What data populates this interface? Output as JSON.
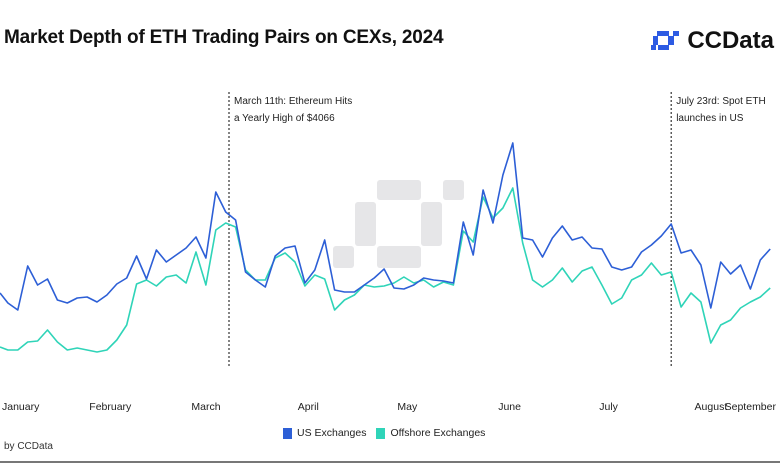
{
  "title": "Market Depth of ETH Trading Pairs on CEXs, 2024",
  "logo": {
    "text": "CCData",
    "color": "#2d5be3"
  },
  "source": "by CCData",
  "annotations": [
    {
      "lines": [
        "March 11th: Ethereum Hits",
        "a Yearly High of $4066"
      ],
      "date": "2024-03-11"
    },
    {
      "lines": [
        "July 23rd: Spot ETH",
        "launches in US"
      ],
      "date": "2024-07-23"
    }
  ],
  "legend": [
    {
      "label": "US Exchanges",
      "color": "#2d5fd6"
    },
    {
      "label": "Offshore Exchanges",
      "color": "#2fd4b8"
    }
  ],
  "chart_data": {
    "type": "line",
    "title": "Market Depth of ETH Trading Pairs on CEXs, 2024",
    "xlabel": "",
    "ylabel": "",
    "y_axis_shown": false,
    "grid": false,
    "legend_position": "bottom",
    "ylim": [
      0,
      240
    ],
    "x_tick_labels": [
      "January",
      "February",
      "March",
      "April",
      "May",
      "June",
      "July",
      "August",
      "September"
    ],
    "x": [
      "2024-01-01",
      "2024-01-04",
      "2024-01-07",
      "2024-01-10",
      "2024-01-13",
      "2024-01-16",
      "2024-01-19",
      "2024-01-22",
      "2024-01-25",
      "2024-01-28",
      "2024-01-31",
      "2024-02-03",
      "2024-02-06",
      "2024-02-09",
      "2024-02-12",
      "2024-02-15",
      "2024-02-18",
      "2024-02-21",
      "2024-02-24",
      "2024-02-27",
      "2024-03-01",
      "2024-03-04",
      "2024-03-07",
      "2024-03-10",
      "2024-03-13",
      "2024-03-16",
      "2024-03-19",
      "2024-03-22",
      "2024-03-25",
      "2024-03-28",
      "2024-03-31",
      "2024-04-03",
      "2024-04-06",
      "2024-04-09",
      "2024-04-12",
      "2024-04-15",
      "2024-04-18",
      "2024-04-21",
      "2024-04-24",
      "2024-04-27",
      "2024-04-30",
      "2024-05-03",
      "2024-05-06",
      "2024-05-09",
      "2024-05-12",
      "2024-05-15",
      "2024-05-18",
      "2024-05-21",
      "2024-05-24",
      "2024-05-27",
      "2024-05-30",
      "2024-06-02",
      "2024-06-05",
      "2024-06-08",
      "2024-06-11",
      "2024-06-14",
      "2024-06-17",
      "2024-06-20",
      "2024-06-23",
      "2024-06-26",
      "2024-06-29",
      "2024-07-02",
      "2024-07-05",
      "2024-07-08",
      "2024-07-11",
      "2024-07-14",
      "2024-07-17",
      "2024-07-20",
      "2024-07-23",
      "2024-07-26",
      "2024-07-29",
      "2024-08-01",
      "2024-08-04",
      "2024-08-07",
      "2024-08-10",
      "2024-08-13",
      "2024-08-16",
      "2024-08-19",
      "2024-08-22"
    ],
    "series": [
      {
        "name": "US Exchanges",
        "color": "#2d5fd6",
        "values": [
          87,
          77,
          70,
          114,
          95,
          101,
          80,
          77,
          82,
          83,
          78,
          85,
          96,
          102,
          124,
          101,
          130,
          118,
          125,
          132,
          143,
          122,
          188,
          168,
          160,
          108,
          100,
          93,
          124,
          132,
          134,
          97,
          110,
          140,
          90,
          88,
          88,
          95,
          102,
          111,
          92,
          91,
          95,
          102,
          100,
          99,
          97,
          158,
          125,
          190,
          157,
          205,
          237,
          142,
          140,
          123,
          142,
          154,
          140,
          143,
          132,
          131,
          113,
          110,
          113,
          128,
          135,
          144,
          156,
          127,
          130,
          115,
          72,
          118,
          106,
          115,
          91,
          120,
          131
        ]
      },
      {
        "name": "Offshore Exchanges",
        "color": "#2fd4b8",
        "values": [
          33,
          30,
          30,
          38,
          39,
          50,
          38,
          30,
          32,
          30,
          28,
          30,
          40,
          55,
          96,
          100,
          94,
          103,
          105,
          97,
          128,
          95,
          150,
          157,
          153,
          110,
          100,
          100,
          122,
          127,
          118,
          94,
          105,
          101,
          70,
          80,
          85,
          95,
          93,
          94,
          97,
          103,
          97,
          100,
          93,
          98,
          95,
          149,
          138,
          183,
          162,
          172,
          192,
          137,
          100,
          93,
          100,
          112,
          98,
          109,
          113,
          95,
          76,
          82,
          100,
          105,
          117,
          105,
          108,
          73,
          87,
          78,
          37,
          55,
          60,
          72,
          78,
          83,
          92
        ]
      }
    ]
  }
}
